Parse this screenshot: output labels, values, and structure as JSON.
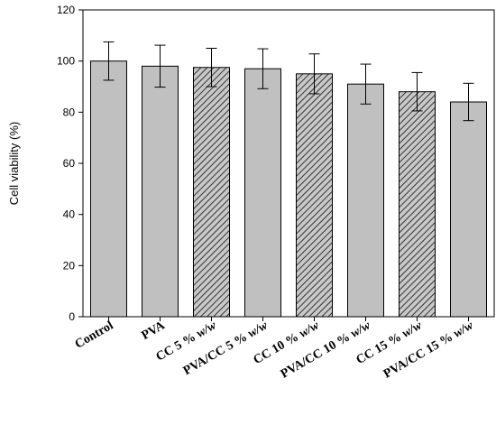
{
  "chart_data": {
    "type": "bar",
    "title": "",
    "xlabel": "",
    "ylabel": "Cell viability (%)",
    "ylim": [
      0,
      120
    ],
    "yticks": [
      0,
      20,
      40,
      60,
      80,
      100,
      120
    ],
    "grid": false,
    "categories": [
      {
        "label": "Control",
        "italic_part": ""
      },
      {
        "label": "PVA",
        "italic_part": ""
      },
      {
        "label": "CC 5 % ",
        "italic_part": "w/w"
      },
      {
        "label": "PVA/CC 5 % ",
        "italic_part": "w/w"
      },
      {
        "label": "CC 10 % ",
        "italic_part": "w/w"
      },
      {
        "label": "PVA/CC 10 % ",
        "italic_part": "w/w"
      },
      {
        "label": "CC 15 % ",
        "italic_part": "w/w"
      },
      {
        "label": "PVA/CC 15 % ",
        "italic_part": "w/w"
      }
    ],
    "values": [
      100,
      98,
      97.5,
      97,
      95,
      91,
      88,
      84
    ],
    "errors": [
      7.5,
      8.2,
      7.5,
      7.8,
      7.8,
      7.8,
      7.5,
      7.3
    ],
    "fill_pattern": [
      "solid",
      "solid",
      "hatched",
      "solid",
      "hatched",
      "solid",
      "hatched",
      "solid"
    ],
    "colors": {
      "bar_fill": "#c0c0c0",
      "hatch_bg": "#c8c8c8",
      "hatch_line": "#333333",
      "stroke": "#000000"
    }
  }
}
